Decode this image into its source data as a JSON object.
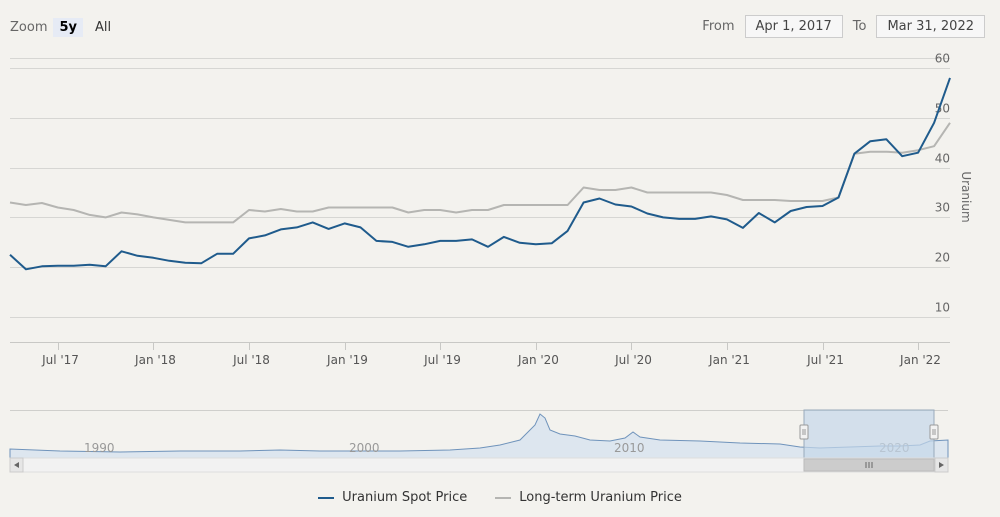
{
  "range_selector": {
    "zoom_label": "Zoom",
    "buttons": [
      "5y",
      "All"
    ],
    "active": "5y",
    "from_label": "From",
    "from_value": "Apr 1, 2017",
    "to_label": "To",
    "to_value": "Mar 31, 2022"
  },
  "colors": {
    "spot": "#1f5b8c",
    "longterm": "#b5b5b2",
    "grid": "#d6d6d3",
    "navigator_fill": "#c5d7ea"
  },
  "chart_data": {
    "type": "line",
    "title": "",
    "ylabel": "Uranium",
    "ylim": [
      5,
      62
    ],
    "yticks": [
      10,
      20,
      30,
      40,
      50,
      60
    ],
    "grid": true,
    "legend_position": "bottom-center",
    "x_range": [
      "2017-04",
      "2022-03"
    ],
    "x_ticks": [
      "Jul '17",
      "Jan '18",
      "Jul '18",
      "Jan '19",
      "Jul '19",
      "Jan '20",
      "Jul '20",
      "Jan '21",
      "Jul '21",
      "Jan '22"
    ],
    "x": [
      "2017-04",
      "2017-05",
      "2017-06",
      "2017-07",
      "2017-08",
      "2017-09",
      "2017-10",
      "2017-11",
      "2017-12",
      "2018-01",
      "2018-02",
      "2018-03",
      "2018-04",
      "2018-05",
      "2018-06",
      "2018-07",
      "2018-08",
      "2018-09",
      "2018-10",
      "2018-11",
      "2018-12",
      "2019-01",
      "2019-02",
      "2019-03",
      "2019-04",
      "2019-05",
      "2019-06",
      "2019-07",
      "2019-08",
      "2019-09",
      "2019-10",
      "2019-11",
      "2019-12",
      "2020-01",
      "2020-02",
      "2020-03",
      "2020-04",
      "2020-05",
      "2020-06",
      "2020-07",
      "2020-08",
      "2020-09",
      "2020-10",
      "2020-11",
      "2020-12",
      "2021-01",
      "2021-02",
      "2021-03",
      "2021-04",
      "2021-05",
      "2021-06",
      "2021-07",
      "2021-08",
      "2021-09",
      "2021-10",
      "2021-11",
      "2021-12",
      "2022-01",
      "2022-02",
      "2022-03"
    ],
    "series": [
      {
        "name": "Uranium Spot Price",
        "values": [
          22.5,
          19.6,
          20.2,
          20.3,
          20.3,
          20.5,
          20.2,
          23.2,
          22.3,
          21.9,
          21.3,
          20.9,
          20.8,
          22.7,
          22.7,
          25.8,
          26.4,
          27.6,
          28.0,
          29.0,
          27.7,
          28.8,
          28.0,
          25.3,
          25.1,
          24.1,
          24.6,
          25.3,
          25.3,
          25.6,
          24.1,
          26.1,
          24.9,
          24.6,
          24.8,
          27.3,
          33.0,
          33.8,
          32.6,
          32.2,
          30.8,
          30.0,
          29.7,
          29.7,
          30.2,
          29.6,
          27.9,
          30.9,
          29.0,
          31.3,
          32.1,
          32.3,
          34.0,
          42.8,
          45.3,
          45.7,
          42.3,
          43.0,
          49.0,
          58.0
        ]
      },
      {
        "name": "Long-term Uranium Price",
        "values": [
          33.0,
          32.5,
          32.9,
          32.0,
          31.5,
          30.5,
          30.0,
          31.0,
          30.6,
          30.0,
          29.5,
          29.0,
          29.0,
          29.0,
          29.0,
          31.5,
          31.2,
          31.7,
          31.2,
          31.2,
          32.0,
          32.0,
          32.0,
          32.0,
          32.0,
          31.0,
          31.5,
          31.5,
          31.0,
          31.5,
          31.5,
          32.5,
          32.5,
          32.5,
          32.5,
          32.5,
          36.0,
          35.5,
          35.5,
          36.0,
          35.0,
          35.0,
          35.0,
          35.0,
          35.0,
          34.5,
          33.5,
          33.5,
          33.5,
          33.3,
          33.3,
          33.3,
          34.0,
          42.8,
          43.2,
          43.2,
          43.0,
          43.5,
          44.3,
          49.0
        ]
      }
    ]
  },
  "navigator": {
    "labels": [
      "1990",
      "2000",
      "2010",
      "2020"
    ]
  }
}
